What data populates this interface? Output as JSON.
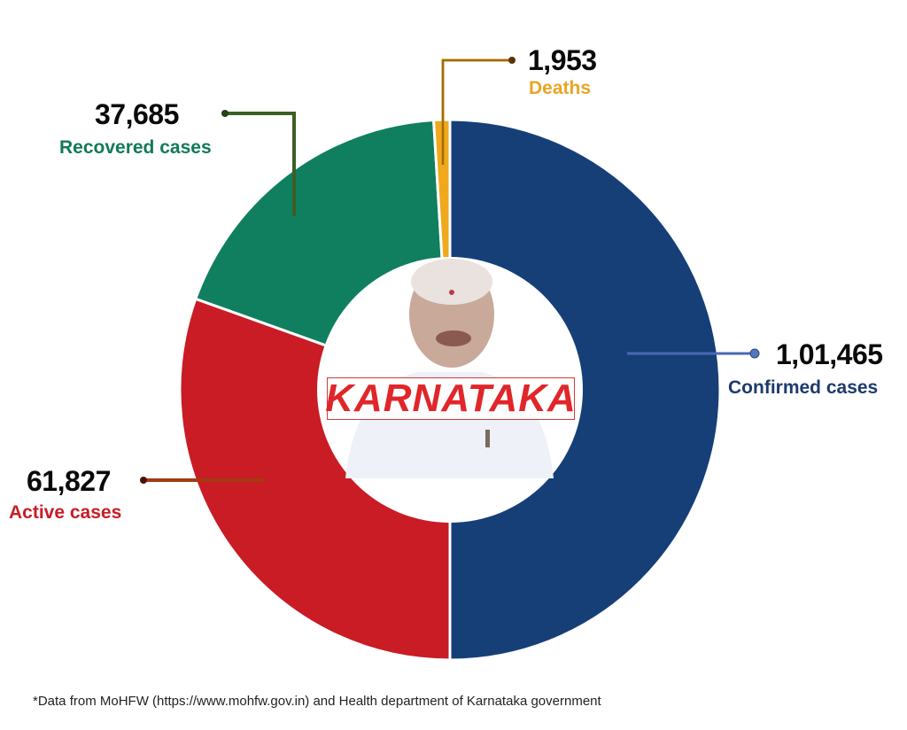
{
  "chart_data": {
    "type": "pie",
    "variant": "donut",
    "title": "",
    "center_label": "KARNATAKA",
    "slices": [
      {
        "name": "Confirmed cases",
        "value": 101465,
        "display": "1,01,465",
        "color": "#163f78"
      },
      {
        "name": "Active cases",
        "value": 61827,
        "display": "61,827",
        "color": "#c91c25"
      },
      {
        "name": "Recovered cases",
        "value": 37685,
        "display": "37,685",
        "color": "#0f7f5f"
      },
      {
        "name": "Deaths",
        "value": 1953,
        "display": "1,953",
        "color": "#f0a81c"
      }
    ],
    "annotation": "*Data from MoHFW (https://www.mohfw.gov.in) and Health department of Karnataka government"
  },
  "labels": {
    "confirmed": {
      "value": "1,01,465",
      "label": "Confirmed cases",
      "color": "#1d3a6e"
    },
    "active": {
      "value": "61,827",
      "label": "Active cases",
      "color": "#c91c25"
    },
    "recovered": {
      "value": "37,685",
      "label": "Recovered cases",
      "color": "#127a5a"
    },
    "deaths": {
      "value": "1,953",
      "label": "Deaths",
      "color": "#eaa524"
    }
  },
  "center": {
    "state": "KARNATAKA",
    "image": "portrait-illustration"
  },
  "footnote": "*Data from MoHFW (https://www.mohfw.gov.in) and Health department of Karnataka government"
}
